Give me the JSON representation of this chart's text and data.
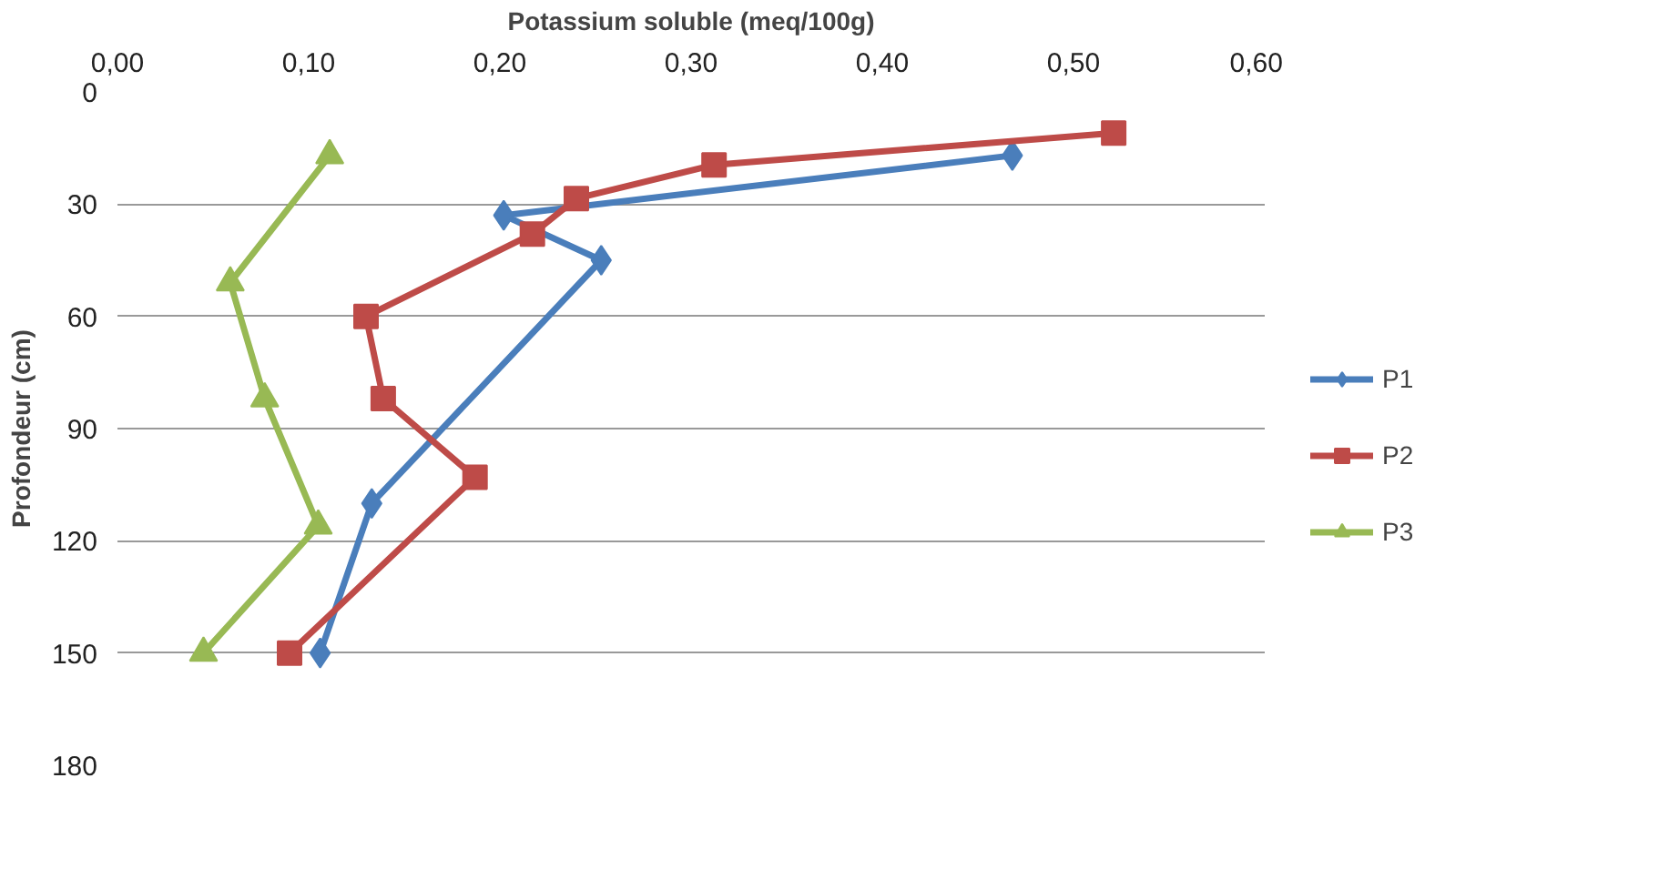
{
  "chart_data": {
    "type": "line",
    "xlabel": "Potassium soluble (meq/100g)",
    "ylabel": "Profondeur (cm)",
    "xlim": [
      0,
      0.6
    ],
    "ylim": [
      180,
      0
    ],
    "xticks": [
      {
        "value": 0,
        "label": "0,00"
      },
      {
        "value": 0.1,
        "label": "0,10"
      },
      {
        "value": 0.2,
        "label": "0,20"
      },
      {
        "value": 0.3,
        "label": "0,30"
      },
      {
        "value": 0.4,
        "label": "0,40"
      },
      {
        "value": 0.5,
        "label": "0,50"
      },
      {
        "value": 0.6,
        "label": "0,60"
      }
    ],
    "yticks": [
      0,
      30,
      60,
      90,
      120,
      150,
      180
    ],
    "grid": "y",
    "legend": "right",
    "series": [
      {
        "name": "P1",
        "color": "#4a7ebb",
        "marker": "diamond",
        "x": [
          0.468,
          0.202,
          0.253,
          0.133,
          0.106
        ],
        "values": [
          17,
          33,
          45,
          110,
          150
        ]
      },
      {
        "name": "P2",
        "color": "#be4b48",
        "marker": "square",
        "x": [
          0.521,
          0.312,
          0.24,
          0.217,
          0.13,
          0.139,
          0.187,
          0.09
        ],
        "values": [
          11,
          19.5,
          28.5,
          38,
          60,
          82,
          103,
          150
        ]
      },
      {
        "name": "P3",
        "color": "#98b954",
        "marker": "triangle",
        "x": [
          0.111,
          0.059,
          0.077,
          0.105,
          0.045
        ],
        "values": [
          17,
          51,
          82,
          116,
          150
        ]
      }
    ]
  }
}
